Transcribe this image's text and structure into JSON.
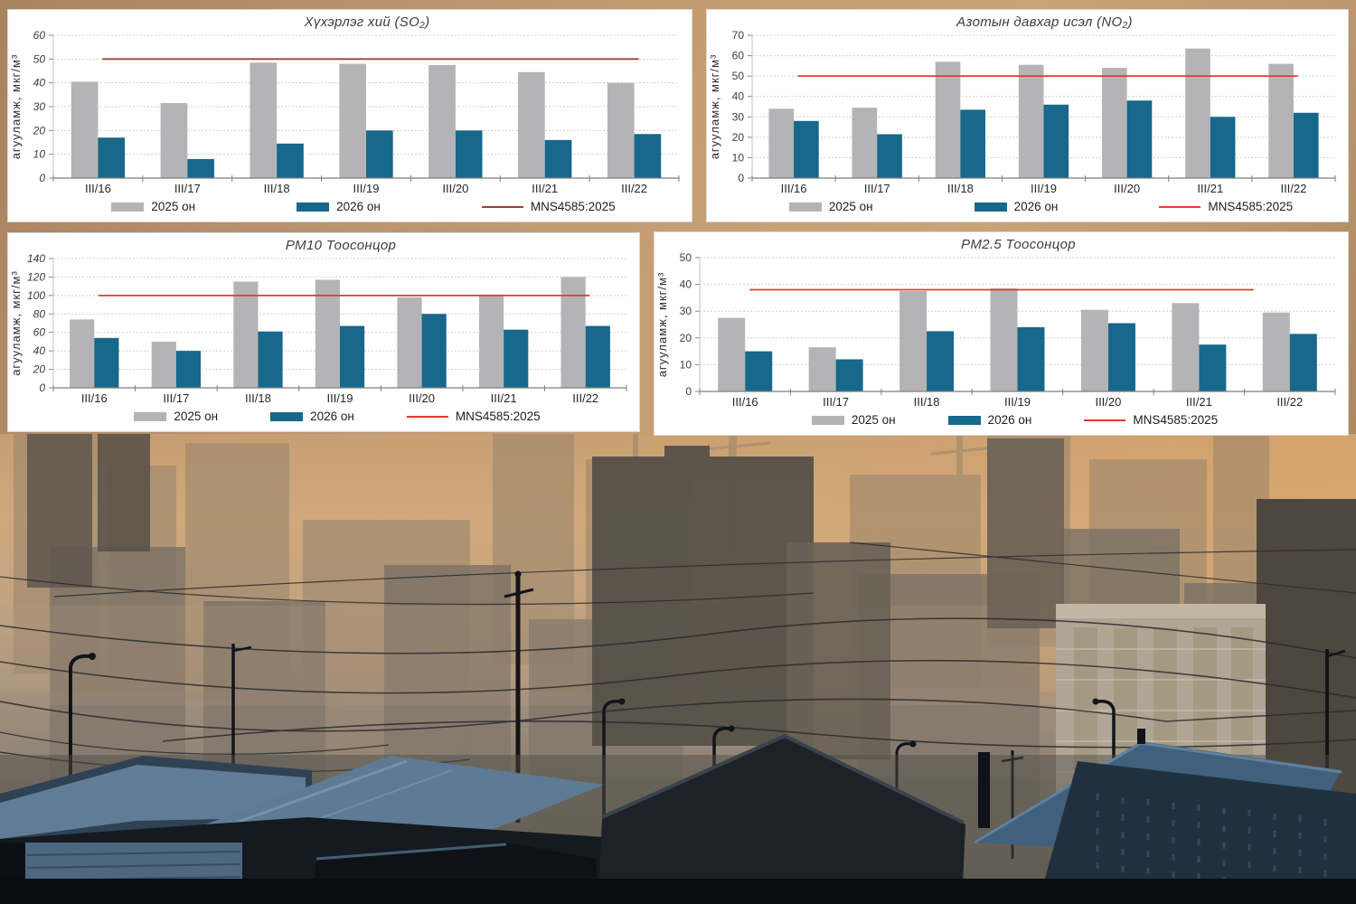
{
  "chart_data": [
    {
      "id": "so2",
      "type": "bar",
      "title": "Хүхэрлэг  хий (SO₂)",
      "ylabel": "агууламж, мкг/м³",
      "categories": [
        "III/16",
        "III/17",
        "III/18",
        "III/19",
        "III/20",
        "III/21",
        "III/22"
      ],
      "series": [
        {
          "name": "2025 он",
          "color": "#b4b4b6",
          "values": [
            40.5,
            31.5,
            48.5,
            48,
            47.5,
            44.5,
            40
          ]
        },
        {
          "name": "2026 он",
          "color": "#17688b",
          "values": [
            17,
            8,
            14.5,
            20,
            20,
            16,
            18.5
          ]
        }
      ],
      "limit_line": {
        "label": "MNS4585:2025",
        "value": 50,
        "color": "#9d3f37"
      },
      "ylim": [
        0,
        60
      ],
      "ytick_step": 10,
      "grid": true,
      "legend_position": "bottom",
      "tick_italic": true,
      "line_start_frac": 0.55,
      "line_end_frac": 0.45
    },
    {
      "id": "no2",
      "type": "bar",
      "title": "Азотын давхар  исэл (NO₂)",
      "ylabel": "агууламж, мкг/м³",
      "categories": [
        "III/16",
        "III/17",
        "III/18",
        "III/19",
        "III/20",
        "III/21",
        "III/22"
      ],
      "series": [
        {
          "name": "2025 он",
          "color": "#b4b4b6",
          "values": [
            34,
            34.5,
            57,
            55.5,
            54,
            63.5,
            56
          ]
        },
        {
          "name": "2026 он",
          "color": "#17688b",
          "values": [
            28,
            21.5,
            33.5,
            36,
            38,
            30,
            32
          ]
        }
      ],
      "limit_line": {
        "label": "MNS4585:2025",
        "value": 50,
        "color": "#e23b2e"
      },
      "ylim": [
        0,
        70
      ],
      "ytick_step": 10,
      "grid": true,
      "legend_position": "bottom",
      "tick_italic": false,
      "line_start_frac": 0.55,
      "line_end_frac": 0.45
    },
    {
      "id": "pm10",
      "type": "bar",
      "title": "PM10  Тоосонцор",
      "ylabel": "агууламж, мкг/м³",
      "categories": [
        "III/16",
        "III/17",
        "III/18",
        "III/19",
        "III/20",
        "III/21",
        "III/22"
      ],
      "series": [
        {
          "name": "2025 он",
          "color": "#b4b4b6",
          "values": [
            74,
            50,
            115,
            117,
            98,
            101,
            120
          ]
        },
        {
          "name": "2026 он",
          "color": "#17688b",
          "values": [
            54,
            40,
            61,
            67,
            80,
            63,
            67
          ]
        }
      ],
      "limit_line": {
        "label": "MNS4585:2025",
        "value": 100,
        "color": "#e23b2e"
      },
      "ylim": [
        0,
        140
      ],
      "ytick_step": 20,
      "grid": true,
      "legend_position": "bottom",
      "tick_italic": true,
      "line_start_frac": 0.55,
      "line_end_frac": 0.45
    },
    {
      "id": "pm25",
      "type": "bar",
      "title": "PM2.5  Тоосонцор",
      "ylabel": "агууламж, мкг/м³",
      "categories": [
        "III/16",
        "III/17",
        "III/18",
        "III/19",
        "III/20",
        "III/21",
        "III/22"
      ],
      "series": [
        {
          "name": "2025 он",
          "color": "#b4b4b6",
          "values": [
            27.5,
            16.5,
            37.5,
            38.5,
            30.5,
            33,
            29.5
          ]
        },
        {
          "name": "2026 он",
          "color": "#17688b",
          "values": [
            15,
            12,
            22.5,
            24,
            25.5,
            17.5,
            21.5
          ]
        }
      ],
      "limit_line": {
        "label": "MNS4585:2025",
        "value": 38,
        "color": "#e23b2e"
      },
      "ylim": [
        0,
        50
      ],
      "ytick_step": 10,
      "grid": true,
      "legend_position": "bottom",
      "tick_italic": false,
      "line_start_frac": 0.55,
      "line_end_frac": 0.9
    }
  ]
}
